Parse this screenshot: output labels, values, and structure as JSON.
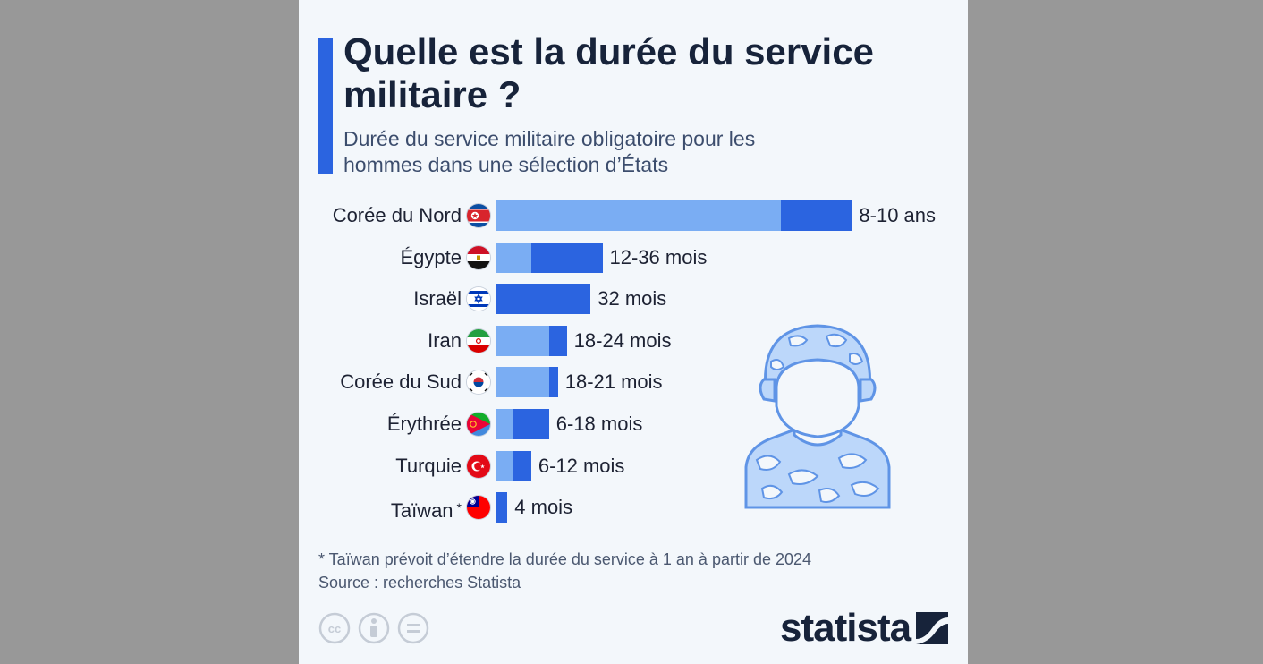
{
  "header": {
    "title": "Quelle est la durée du service militaire ?",
    "subtitle": "Durée du service militaire obligatoire pour les hommes dans une sélection d’États"
  },
  "chart_data": {
    "type": "bar",
    "orientation": "horizontal",
    "unit": "mois",
    "categories": [
      "Corée du Nord",
      "Égypte",
      "Israël",
      "Iran",
      "Corée du Sud",
      "Érythrée",
      "Turquie",
      "Taïwan"
    ],
    "series": [
      {
        "values": [
          96,
          12,
          32,
          18,
          18,
          6,
          6,
          4
        ]
      },
      {
        "values": [
          120,
          36,
          32,
          24,
          21,
          18,
          12,
          4
        ]
      }
    ],
    "data_labels": [
      "8-10 ans",
      "12-36 mois",
      "32 mois",
      "18-24 mois",
      "18-21 mois",
      "6-18 mois",
      "6-12 mois",
      "4 mois"
    ],
    "annotated_categories": {
      "Taïwan": "*"
    },
    "colors": {
      "min": "#7aadf3",
      "max": "#2b64e0"
    },
    "flags": [
      "north-korea",
      "egypt",
      "israel",
      "iran",
      "south-korea",
      "eritrea",
      "turkey",
      "taiwan"
    ],
    "grid": false,
    "legend": "none"
  },
  "footer": {
    "note": "* Taïwan prévoit d’étendre la durée du service à 1 an à partir de 2024",
    "source": "Source : recherches Statista",
    "brand": "statista"
  },
  "icons": [
    "cc-icon",
    "attribution-icon",
    "no-derivatives-icon",
    "soldier-icon",
    "statista-logo-icon"
  ]
}
